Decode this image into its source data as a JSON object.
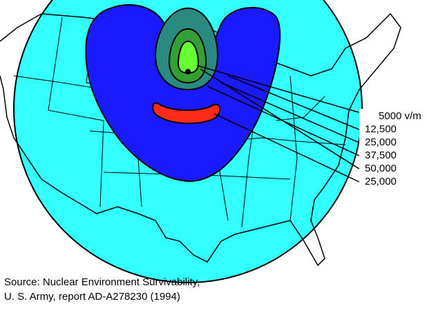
{
  "contour_labels": [
    "5000 v/m",
    "12,500",
    "25,000",
    "37,500",
    "50,000",
    "25,000"
  ],
  "source": [
    "Source: Nuclear Environment Survivability,",
    "U. S. Army, report AD-A278230 (1994)"
  ]
}
